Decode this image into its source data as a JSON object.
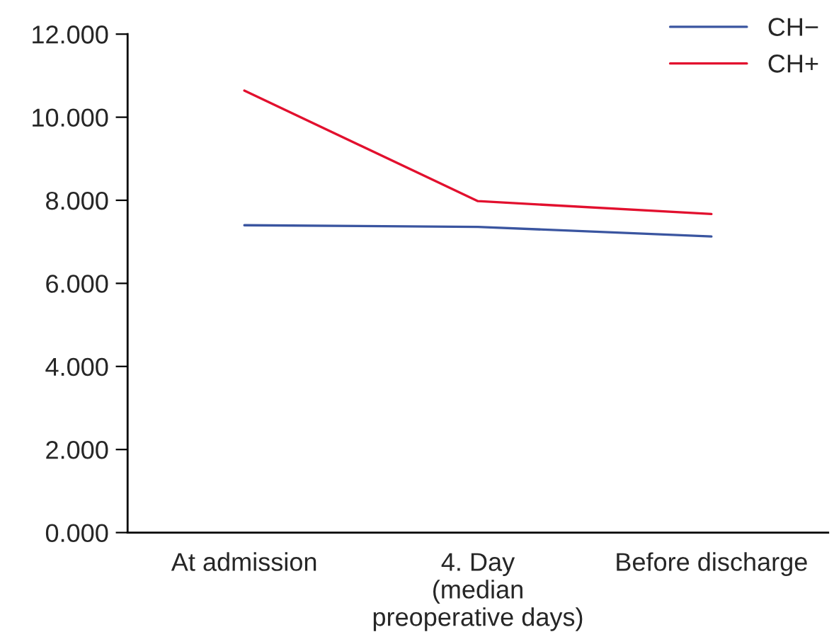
{
  "chart_data": {
    "type": "line",
    "categories": [
      "At admission",
      "4. Day\n(median\npreoperative days)",
      "Before discharge"
    ],
    "series": [
      {
        "name": "CH−",
        "color": "#3a55a0",
        "values": [
          7.4,
          7.36,
          7.13
        ]
      },
      {
        "name": "CH+",
        "color": "#e2102e",
        "values": [
          10.64,
          7.98,
          7.67
        ]
      }
    ],
    "ylim": [
      0,
      12
    ],
    "yticks": [
      {
        "value": 0,
        "label": "0.000"
      },
      {
        "value": 2,
        "label": "2.000"
      },
      {
        "value": 4,
        "label": "4.000"
      },
      {
        "value": 6,
        "label": "6.000"
      },
      {
        "value": 8,
        "label": "8.000"
      },
      {
        "value": 10,
        "label": "10.000"
      },
      {
        "value": 12,
        "label": "12.000"
      }
    ],
    "legend": "top right",
    "grid": false,
    "marker": "none",
    "line_style": "solid"
  }
}
